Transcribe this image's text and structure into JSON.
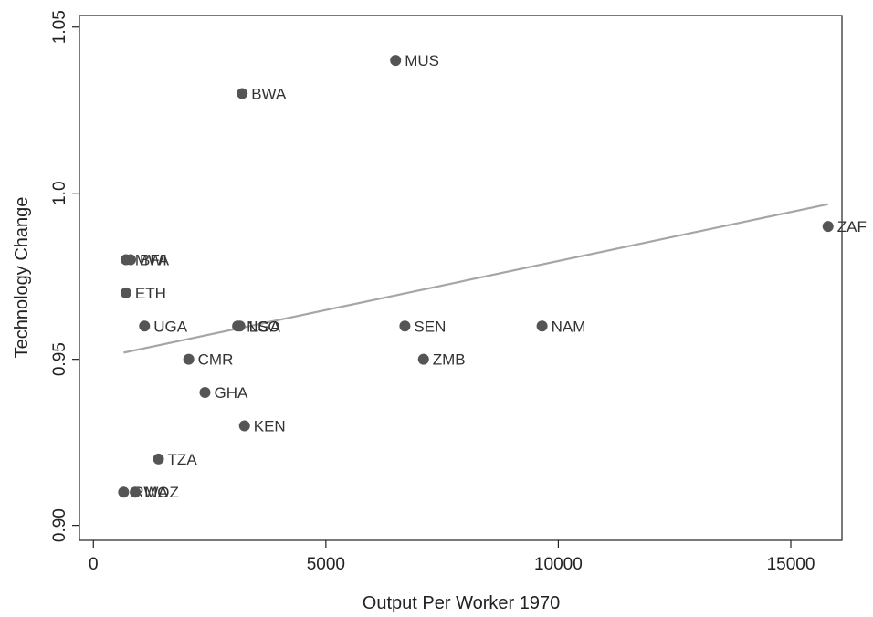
{
  "chart_data": {
    "type": "scatter",
    "title": "",
    "xlabel": "Output Per Worker 1970",
    "ylabel": "Technology Change",
    "xlim": [
      -300,
      16100
    ],
    "ylim": [
      0.8955,
      1.0535
    ],
    "xticks": [
      0,
      5000,
      10000,
      15000
    ],
    "xtick_labels": [
      "0",
      "5000",
      "10000",
      "15000"
    ],
    "yticks": [
      0.9,
      0.95,
      1.0,
      1.05
    ],
    "ytick_labels": [
      "0.90",
      "0.95",
      "1.0",
      "1.05"
    ],
    "grid": false,
    "colors": {
      "marker": "#555555",
      "fit_line": "#a6a6a6",
      "axis": "#222222"
    },
    "points": [
      {
        "label": "MUS",
        "x": 6500,
        "y": 1.04
      },
      {
        "label": "BWA",
        "x": 3200,
        "y": 1.03
      },
      {
        "label": "ZAF",
        "x": 15800,
        "y": 0.99
      },
      {
        "label": "MWI",
        "x": 700,
        "y": 0.98
      },
      {
        "label": "BFA",
        "x": 800,
        "y": 0.98
      },
      {
        "label": "ETH",
        "x": 700,
        "y": 0.97
      },
      {
        "label": "UGA",
        "x": 1100,
        "y": 0.96
      },
      {
        "label": "NGA",
        "x": 3100,
        "y": 0.96
      },
      {
        "label": "LSO",
        "x": 3150,
        "y": 0.96
      },
      {
        "label": "SEN",
        "x": 6700,
        "y": 0.96
      },
      {
        "label": "NAM",
        "x": 9650,
        "y": 0.96
      },
      {
        "label": "CMR",
        "x": 2050,
        "y": 0.95
      },
      {
        "label": "ZMB",
        "x": 7100,
        "y": 0.95
      },
      {
        "label": "GHA",
        "x": 2400,
        "y": 0.94
      },
      {
        "label": "KEN",
        "x": 3250,
        "y": 0.93
      },
      {
        "label": "TZA",
        "x": 1400,
        "y": 0.92
      },
      {
        "label": "RWA",
        "x": 650,
        "y": 0.91
      },
      {
        "label": "MOZ",
        "x": 900,
        "y": 0.91
      }
    ],
    "fit_line": {
      "x": [
        650,
        15800
      ],
      "y": [
        0.952,
        0.9967
      ]
    }
  }
}
